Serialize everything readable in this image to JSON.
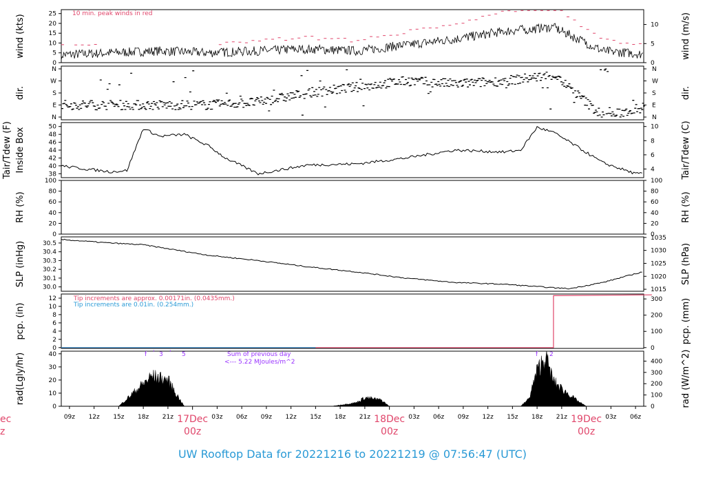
{
  "title": "UW Rooftop Data for 20221216  to  20221219 @ 07:56:47  (UTC)",
  "time_axis": {
    "hour_labels": [
      "09z",
      "12z",
      "15z",
      "18z",
      "21z",
      "03z",
      "06z",
      "09z",
      "12z",
      "15z",
      "18z",
      "21z",
      "03z",
      "06z",
      "09z",
      "12z",
      "15z",
      "18z",
      "21z",
      "03z",
      "06z"
    ],
    "day_labels": [
      {
        "name": "17Dec",
        "sub": "00z"
      },
      {
        "name": "18Dec",
        "sub": "00z"
      },
      {
        "name": "19Dec",
        "sub": "00z"
      }
    ],
    "left_edge_day_fragment": {
      "name": "ec",
      "sub": "z"
    }
  },
  "notes": {
    "wind_peak": "10 min. peak winds in red",
    "tip1": "Tip increments are approx. 0.00171in. (0.0435mm.)",
    "tip2": "Tip increments are 0.01in. (0.254mm.)",
    "rad_sum_title": "Sum of previous day",
    "rad_sum_value": "<--- 5.22 MJoules/m^2",
    "rad_markers": [
      "f",
      "'",
      "3",
      "'",
      "5",
      "f",
      "2"
    ]
  },
  "colors": {
    "peak": "#e0456a",
    "blue": "#2a9ad6",
    "purple": "#9933ff",
    "trace": "#000000"
  },
  "chart_data": [
    {
      "type": "line",
      "name": "wind",
      "ylabel": "wind (kts)",
      "ylabel_right": "wind (m/s)",
      "y_ticks": [
        0,
        5,
        10,
        15,
        20,
        25
      ],
      "y_right_ticks": [
        0,
        5,
        10
      ],
      "ylim": [
        0,
        27
      ],
      "note": "10 min. peak winds in red",
      "x_hours": [
        0,
        6,
        12,
        18,
        24,
        30,
        36,
        42,
        48,
        54,
        60,
        66,
        72
      ],
      "values": [
        4,
        5,
        6,
        5,
        6,
        7,
        6,
        9,
        12,
        16,
        18,
        6,
        4
      ]
    },
    {
      "type": "scatter",
      "name": "dir",
      "ylabel": "dir.",
      "ylabel_right": "dir.",
      "y_ticks": [
        "N",
        "E",
        "S",
        "W",
        "N"
      ],
      "x_hours": [
        0,
        6,
        12,
        18,
        24,
        30,
        36,
        42,
        48,
        54,
        60,
        66,
        72
      ],
      "values": [
        "E",
        "E",
        "E",
        "E",
        "ESE",
        "S",
        "SW",
        "W",
        "WSW",
        "W",
        "NW",
        "N",
        "E"
      ]
    },
    {
      "type": "line",
      "name": "temp",
      "ylabel": "Inside Box",
      "ylabel2": "Tair/Tdew (F)",
      "ylabel_right": "Tair/Tdew (C)",
      "y_ticks": [
        38,
        40,
        42,
        44,
        46,
        48,
        50
      ],
      "y_right_ticks": [
        4,
        6,
        8,
        10
      ],
      "ylim": [
        37,
        51
      ],
      "x_hours": [
        0,
        3,
        6,
        8,
        10,
        12,
        15,
        18,
        20,
        22,
        24,
        30,
        36,
        42,
        48,
        54,
        56,
        58,
        60,
        62,
        66,
        70,
        72
      ],
      "values": [
        40,
        39.2,
        38.5,
        38.8,
        49.5,
        47.5,
        48,
        45,
        42,
        40,
        38,
        40.2,
        40.5,
        42,
        44,
        43.5,
        44,
        49.8,
        48.5,
        46,
        40.8,
        38,
        38
      ]
    },
    {
      "type": "line",
      "name": "rh",
      "ylabel": "RH (%)",
      "ylabel_right": "RH (%)",
      "y_ticks": [
        0,
        20,
        40,
        60,
        80,
        100
      ],
      "ylim": [
        0,
        100
      ],
      "x_hours": [],
      "values": []
    },
    {
      "type": "line",
      "name": "slp",
      "ylabel": "SLP (inHg)",
      "ylabel_right": "SLP (hPa)",
      "y_ticks": [
        30.0,
        30.1,
        30.2,
        30.3,
        30.4,
        30.5
      ],
      "y_right_ticks": [
        1015,
        1020,
        1025,
        1030,
        1035
      ],
      "ylim": [
        29.95,
        30.57
      ],
      "x_hours": [
        0,
        6,
        10,
        12,
        18,
        24,
        30,
        36,
        42,
        48,
        54,
        60,
        62,
        66,
        72
      ],
      "values": [
        30.54,
        30.5,
        30.48,
        30.45,
        30.36,
        30.3,
        30.23,
        30.17,
        30.1,
        30.05,
        30.03,
        29.99,
        29.98,
        30.05,
        30.2
      ]
    },
    {
      "type": "line",
      "name": "pcp",
      "ylabel": "pcp. (in)",
      "ylabel_right": "pcp. (mm)",
      "y_ticks": [
        0,
        2,
        4,
        6,
        8,
        10,
        12
      ],
      "y_right_ticks": [
        0,
        100,
        200,
        300
      ],
      "ylim": [
        -0.2,
        13
      ],
      "x_hours": [
        0,
        60,
        60,
        72
      ],
      "values": [
        0,
        0,
        12.6,
        12.8
      ]
    },
    {
      "type": "area",
      "name": "rad",
      "ylabel": "rad(Lgly/hr)",
      "ylabel_right": "rad (W/m^2)",
      "y_ticks": [
        0,
        10,
        20,
        30,
        40
      ],
      "y_right_ticks": [
        0,
        100,
        200,
        300,
        400
      ],
      "ylim": [
        0,
        42
      ],
      "x_hours": [
        7,
        9,
        11,
        13,
        14,
        15,
        33,
        36,
        37,
        39,
        40,
        56,
        57,
        58,
        59,
        60,
        61,
        62,
        63,
        64
      ],
      "values": [
        0,
        12,
        24,
        21,
        10,
        0,
        0,
        3,
        7,
        5,
        0,
        0,
        6,
        28,
        40,
        20,
        14,
        9,
        4,
        0
      ]
    }
  ]
}
